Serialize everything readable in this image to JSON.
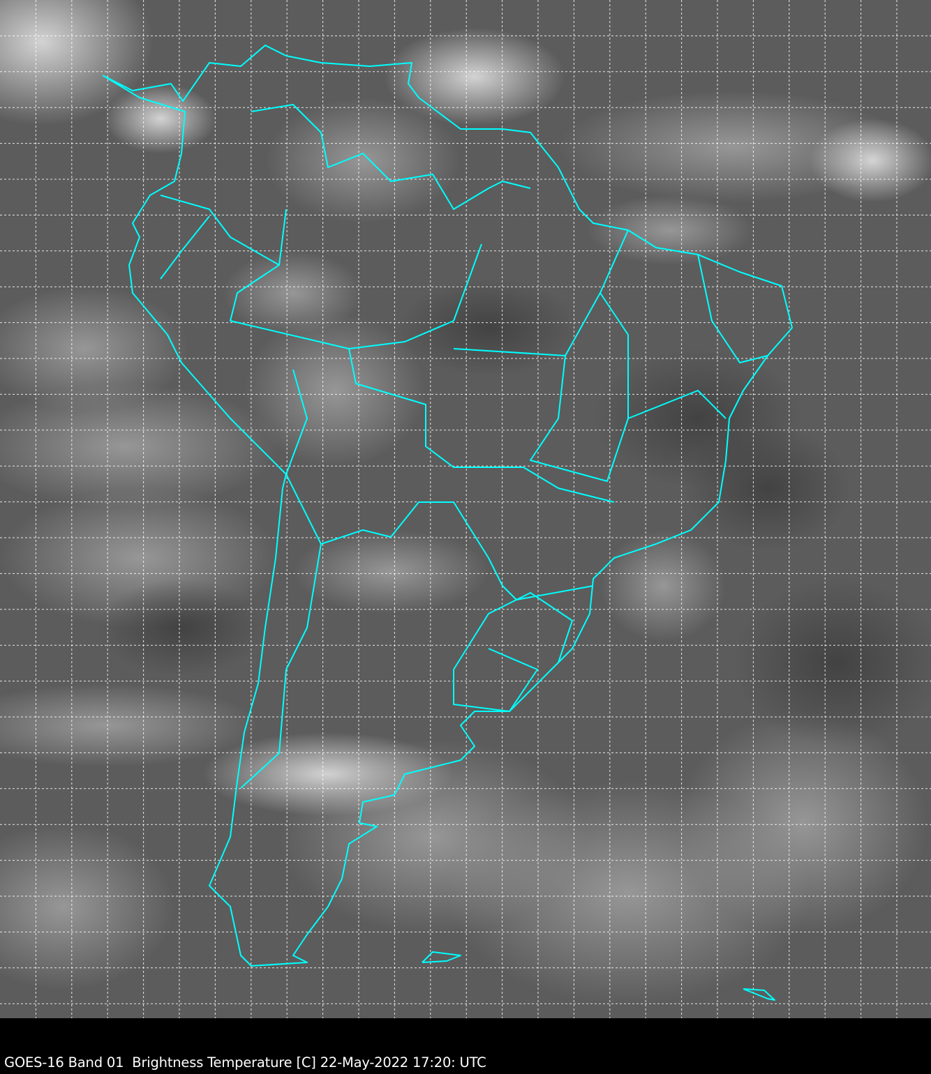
{
  "caption": "GOES-16 Band 01  Brightness Temperature [C] 22-May-2022 17:20: UTC",
  "colors": {
    "border_lines": "#00ffff",
    "grid": "#ffffff",
    "background": "#000000"
  },
  "map": {
    "region": "South America",
    "overlay": "country and state borders",
    "gridlines": "dashed lat/lon"
  }
}
